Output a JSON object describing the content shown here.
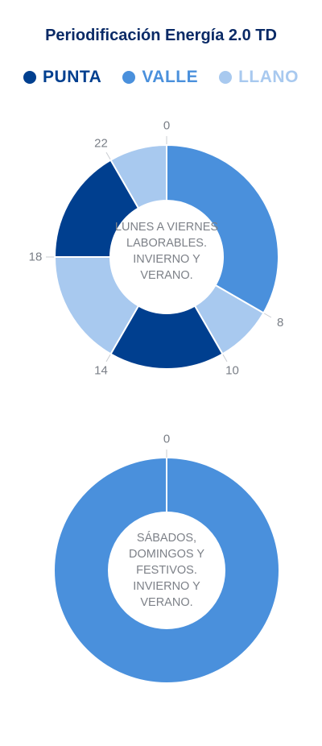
{
  "title": "Periodificación Energía 2.0 TD",
  "legend": [
    {
      "label": "PUNTA",
      "color": "#003f8f"
    },
    {
      "label": "VALLE",
      "color": "#4a90dc"
    },
    {
      "label": "LLANO",
      "color": "#a8c9ef"
    }
  ],
  "chart_data": [
    {
      "type": "pie",
      "variant": "donut-24h",
      "center_label": "LUNES A VIERNES LABORABLES. INVIERNO Y VERANO.",
      "segments": [
        {
          "period": "VALLE",
          "start": 0,
          "end": 8
        },
        {
          "period": "LLANO",
          "start": 8,
          "end": 10
        },
        {
          "period": "PUNTA",
          "start": 10,
          "end": 14
        },
        {
          "period": "LLANO",
          "start": 14,
          "end": 18
        },
        {
          "period": "PUNTA",
          "start": 18,
          "end": 22
        },
        {
          "period": "LLANO",
          "start": 22,
          "end": 24
        }
      ],
      "tick_labels": [
        "0",
        "8",
        "10",
        "14",
        "18",
        "22"
      ]
    },
    {
      "type": "pie",
      "variant": "donut-24h",
      "center_label": "SÁBADOS, DOMINGOS Y FESTIVOS. INVIERNO Y VERANO.",
      "segments": [
        {
          "period": "VALLE",
          "start": 0,
          "end": 24
        }
      ],
      "tick_labels": [
        "0"
      ]
    }
  ]
}
